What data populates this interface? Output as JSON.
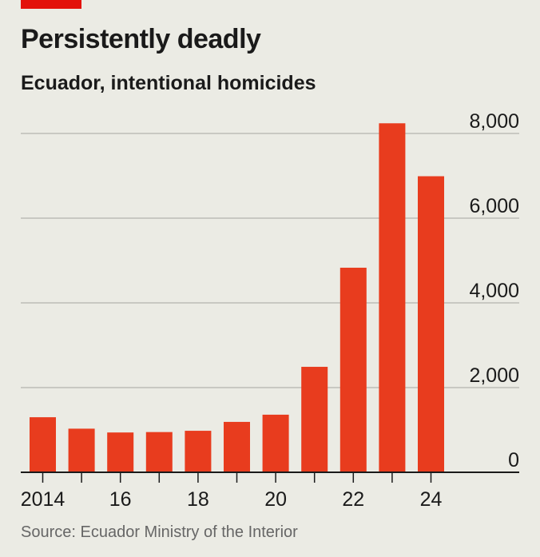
{
  "header": {
    "title": "Persistently deadly",
    "subtitle": "Ecuador, intentional homicides"
  },
  "footer": {
    "source": "Source: Ecuador Ministry of the Interior"
  },
  "colors": {
    "accent": "#e3120b",
    "bar": "#e83c1e",
    "grid": "#b4b4ad",
    "axis": "#1a1a1a",
    "background": "#ebebe4"
  },
  "chart_data": {
    "type": "bar",
    "title": "Persistently deadly",
    "subtitle": "Ecuador, intentional homicides",
    "xlabel": "",
    "ylabel": "",
    "categories": [
      "2014",
      "2015",
      "2016",
      "2017",
      "2018",
      "2019",
      "2020",
      "2021",
      "2022",
      "2023",
      "2024"
    ],
    "x_tick_labels": [
      "2014",
      "",
      "16",
      "",
      "18",
      "",
      "20",
      "",
      "22",
      "",
      "24"
    ],
    "values": [
      1300,
      1030,
      940,
      950,
      980,
      1190,
      1360,
      2490,
      4830,
      8240,
      6990
    ],
    "ylim": [
      0,
      8000
    ],
    "y_ticks": [
      {
        "value": 8000,
        "label": "8,000"
      },
      {
        "value": 6000,
        "label": "6,000"
      },
      {
        "value": 4000,
        "label": "4,000"
      },
      {
        "value": 2000,
        "label": "2,000"
      },
      {
        "value": 0,
        "label": "0"
      }
    ],
    "y_axis_side": "right",
    "grid": true,
    "legend": "none"
  }
}
